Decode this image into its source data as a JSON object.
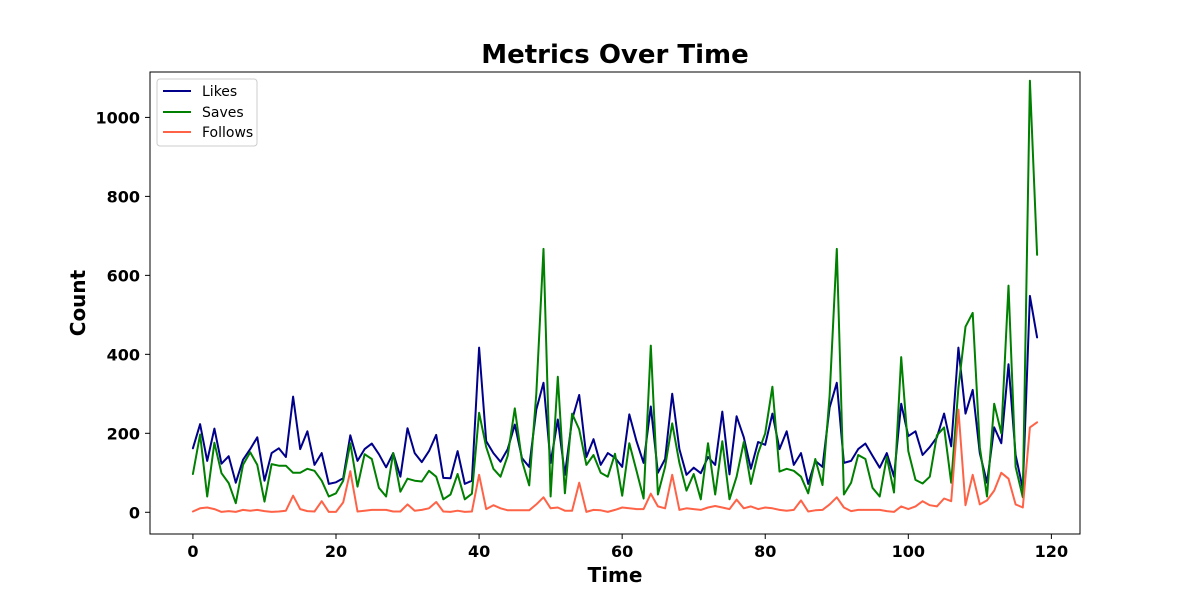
{
  "chart_data": {
    "type": "line",
    "title": "Metrics Over Time",
    "xlabel": "Time",
    "ylabel": "Count",
    "xlim": [
      -6,
      124
    ],
    "ylim": [
      -55,
      1115
    ],
    "xticks": [
      0,
      20,
      40,
      60,
      80,
      100,
      120
    ],
    "yticks": [
      0,
      200,
      400,
      600,
      800,
      1000
    ],
    "grid": false,
    "legend_position": "top-left",
    "series": [
      {
        "name": "Likes",
        "color": "#00008b",
        "values": [
          162,
          223,
          130,
          212,
          123,
          142,
          75,
          133,
          160,
          190,
          80,
          150,
          162,
          140,
          293,
          160,
          205,
          120,
          150,
          72,
          76,
          86,
          195,
          130,
          160,
          174,
          147,
          114,
          150,
          90,
          213,
          150,
          127,
          155,
          196,
          87,
          86,
          155,
          72,
          80,
          417,
          180,
          150,
          128,
          160,
          222,
          137,
          115,
          260,
          328,
          125,
          235,
          95,
          235,
          297,
          140,
          185,
          120,
          150,
          138,
          115,
          248,
          180,
          125,
          268,
          100,
          135,
          300,
          160,
          95,
          113,
          99,
          140,
          120,
          255,
          96,
          243,
          190,
          110,
          178,
          171,
          250,
          160,
          205,
          120,
          150,
          72,
          130,
          115,
          265,
          328,
          125,
          130,
          160,
          174,
          143,
          113,
          150,
          90,
          275,
          193,
          205,
          145,
          165,
          190,
          250,
          167,
          417,
          250,
          310,
          150,
          75,
          215,
          175,
          375,
          145,
          60,
          548,
          443
        ],
        "labels": []
      },
      {
        "name": "Saves",
        "color": "#008000",
        "values": [
          97,
          197,
          40,
          176,
          99,
          74,
          23,
          120,
          152,
          120,
          27,
          122,
          118,
          118,
          100,
          100,
          110,
          105,
          80,
          40,
          48,
          80,
          175,
          65,
          147,
          135,
          62,
          40,
          150,
          52,
          85,
          80,
          78,
          105,
          90,
          33,
          45,
          97,
          33,
          47,
          252,
          165,
          110,
          90,
          143,
          263,
          130,
          68,
          300,
          667,
          40,
          343,
          48,
          250,
          210,
          120,
          145,
          100,
          90,
          148,
          42,
          175,
          105,
          35,
          422,
          45,
          115,
          225,
          125,
          55,
          97,
          33,
          175,
          45,
          180,
          33,
          90,
          178,
          72,
          150,
          200,
          318,
          103,
          110,
          105,
          90,
          48,
          135,
          69,
          295,
          667,
          45,
          75,
          145,
          135,
          62,
          40,
          140,
          50,
          393,
          155,
          82,
          73,
          90,
          195,
          215,
          75,
          315,
          470,
          505,
          165,
          40,
          275,
          200,
          574,
          115,
          38,
          1093,
          652
        ],
        "labels": []
      },
      {
        "name": "Follows",
        "color": "#ff6347",
        "values": [
          2,
          10,
          12,
          8,
          1,
          3,
          1,
          6,
          4,
          6,
          3,
          1,
          2,
          4,
          42,
          8,
          3,
          2,
          28,
          1,
          1,
          25,
          104,
          2,
          4,
          6,
          6,
          6,
          2,
          2,
          20,
          4,
          6,
          10,
          26,
          2,
          1,
          4,
          1,
          2,
          95,
          8,
          18,
          10,
          5,
          5,
          5,
          5,
          20,
          38,
          10,
          12,
          4,
          4,
          75,
          1,
          6,
          5,
          1,
          6,
          12,
          10,
          8,
          8,
          47,
          15,
          10,
          95,
          6,
          10,
          8,
          6,
          12,
          16,
          12,
          8,
          32,
          10,
          15,
          8,
          12,
          10,
          6,
          4,
          6,
          30,
          2,
          5,
          6,
          20,
          38,
          12,
          3,
          6,
          6,
          6,
          6,
          3,
          1,
          15,
          8,
          15,
          28,
          18,
          15,
          35,
          28,
          260,
          18,
          95,
          20,
          30,
          55,
          100,
          85,
          20,
          12,
          215,
          228
        ],
        "labels": []
      }
    ]
  }
}
